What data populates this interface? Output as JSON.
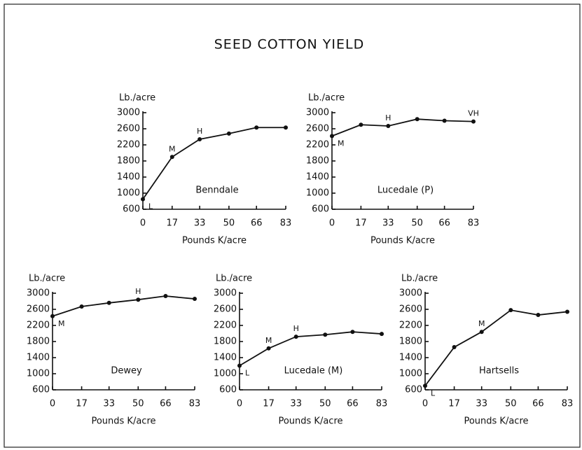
{
  "title": "SEED COTTON YIELD",
  "chart_data": [
    {
      "type": "line",
      "name": "Benndale",
      "ylabel": "Lb./acre",
      "xlabel": "Pounds K/acre",
      "color": "#111111",
      "x": [
        0,
        17,
        33,
        50,
        66,
        83
      ],
      "values": [
        850,
        1900,
        2340,
        2480,
        2630,
        2630
      ],
      "xlim": [
        0,
        83
      ],
      "ylim": [
        600,
        3000
      ],
      "xticks": [
        0,
        17,
        33,
        50,
        66,
        83
      ],
      "yticks": [
        600,
        1000,
        1400,
        1800,
        2200,
        2600,
        3000
      ],
      "annotations": [
        {
          "label": "L",
          "x": 0
        },
        {
          "label": "M",
          "x": 17
        },
        {
          "label": "H",
          "x": 33
        }
      ]
    },
    {
      "type": "line",
      "name": "Lucedale (P)",
      "ylabel": "Lb./acre",
      "xlabel": "Pounds K/acre",
      "color": "#111111",
      "x": [
        0,
        17,
        33,
        50,
        66,
        83
      ],
      "values": [
        2420,
        2700,
        2670,
        2840,
        2800,
        2780
      ],
      "xlim": [
        0,
        83
      ],
      "ylim": [
        600,
        3000
      ],
      "xticks": [
        0,
        17,
        33,
        50,
        66,
        83
      ],
      "yticks": [
        600,
        1000,
        1400,
        1800,
        2200,
        2600,
        3000
      ],
      "annotations": [
        {
          "label": "M",
          "x": 0
        },
        {
          "label": "H",
          "x": 33
        },
        {
          "label": "VH",
          "x": 83
        }
      ]
    },
    {
      "type": "line",
      "name": "Dewey",
      "ylabel": "Lb./acre",
      "xlabel": "Pounds K/acre",
      "color": "#111111",
      "x": [
        0,
        17,
        33,
        50,
        66,
        83
      ],
      "values": [
        2430,
        2670,
        2760,
        2840,
        2930,
        2860
      ],
      "xlim": [
        0,
        83
      ],
      "ylim": [
        600,
        3000
      ],
      "xticks": [
        0,
        17,
        33,
        50,
        66,
        83
      ],
      "yticks": [
        600,
        1000,
        1400,
        1800,
        2200,
        2600,
        3000
      ],
      "annotations": [
        {
          "label": "M",
          "x": 0
        },
        {
          "label": "H",
          "x": 50
        }
      ]
    },
    {
      "type": "line",
      "name": "Lucedale (M)",
      "ylabel": "Lb./acre",
      "xlabel": "Pounds K/acre",
      "color": "#111111",
      "x": [
        0,
        17,
        33,
        50,
        66,
        83
      ],
      "values": [
        1200,
        1630,
        1920,
        1970,
        2040,
        1990
      ],
      "xlim": [
        0,
        83
      ],
      "ylim": [
        600,
        3000
      ],
      "xticks": [
        0,
        17,
        33,
        50,
        66,
        83
      ],
      "yticks": [
        600,
        1000,
        1400,
        1800,
        2200,
        2600,
        3000
      ],
      "annotations": [
        {
          "label": "L",
          "x": 0
        },
        {
          "label": "M",
          "x": 17
        },
        {
          "label": "H",
          "x": 33
        }
      ]
    },
    {
      "type": "line",
      "name": "Hartsells",
      "ylabel": "Lb./acre",
      "xlabel": "Pounds K/acre",
      "color": "#111111",
      "x": [
        0,
        17,
        33,
        50,
        66,
        83
      ],
      "values": [
        700,
        1660,
        2040,
        2580,
        2460,
        2540
      ],
      "xlim": [
        0,
        83
      ],
      "ylim": [
        600,
        3000
      ],
      "xticks": [
        0,
        17,
        33,
        50,
        66,
        83
      ],
      "yticks": [
        600,
        1000,
        1400,
        1800,
        2200,
        2600,
        3000
      ],
      "annotations": [
        {
          "label": "L",
          "x": 0
        },
        {
          "label": "M",
          "x": 33
        }
      ]
    }
  ]
}
